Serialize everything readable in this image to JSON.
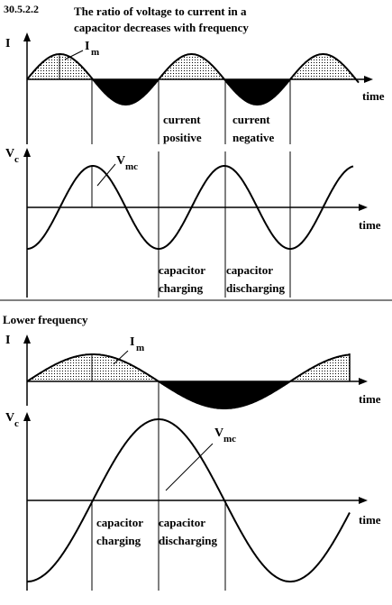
{
  "header": {
    "code": "30.5.2.2",
    "title_line1": "The ratio of voltage to current in a",
    "title_line2": "capacitor decreases with frequency"
  },
  "upper": {
    "current_axis": "I",
    "current_peak_label": "I",
    "current_peak_sub": "m",
    "voltage_axis": "V",
    "voltage_axis_sub": "c",
    "voltage_peak_label": "V",
    "voltage_peak_sub": "mc",
    "time_label": "time",
    "current_positive": [
      "current",
      "positive"
    ],
    "current_negative": [
      "current",
      "negative"
    ],
    "cap_charging": [
      "capacitor",
      "charging"
    ],
    "cap_discharging": [
      "capacitor",
      "discharging"
    ]
  },
  "lower": {
    "heading": "Lower frequency",
    "current_axis": "I",
    "current_peak_label": "I",
    "current_peak_sub": "m",
    "voltage_axis": "V",
    "voltage_axis_sub": "c",
    "voltage_peak_label": "V",
    "voltage_peak_sub": "mc",
    "time_label": "time",
    "cap_charging": [
      "capacitor",
      "charging"
    ],
    "cap_discharging": [
      "capacitor",
      "discharging"
    ]
  },
  "colors": {
    "ink": "#000000",
    "fill_pos": "dotted",
    "fill_neg": "#000000"
  }
}
